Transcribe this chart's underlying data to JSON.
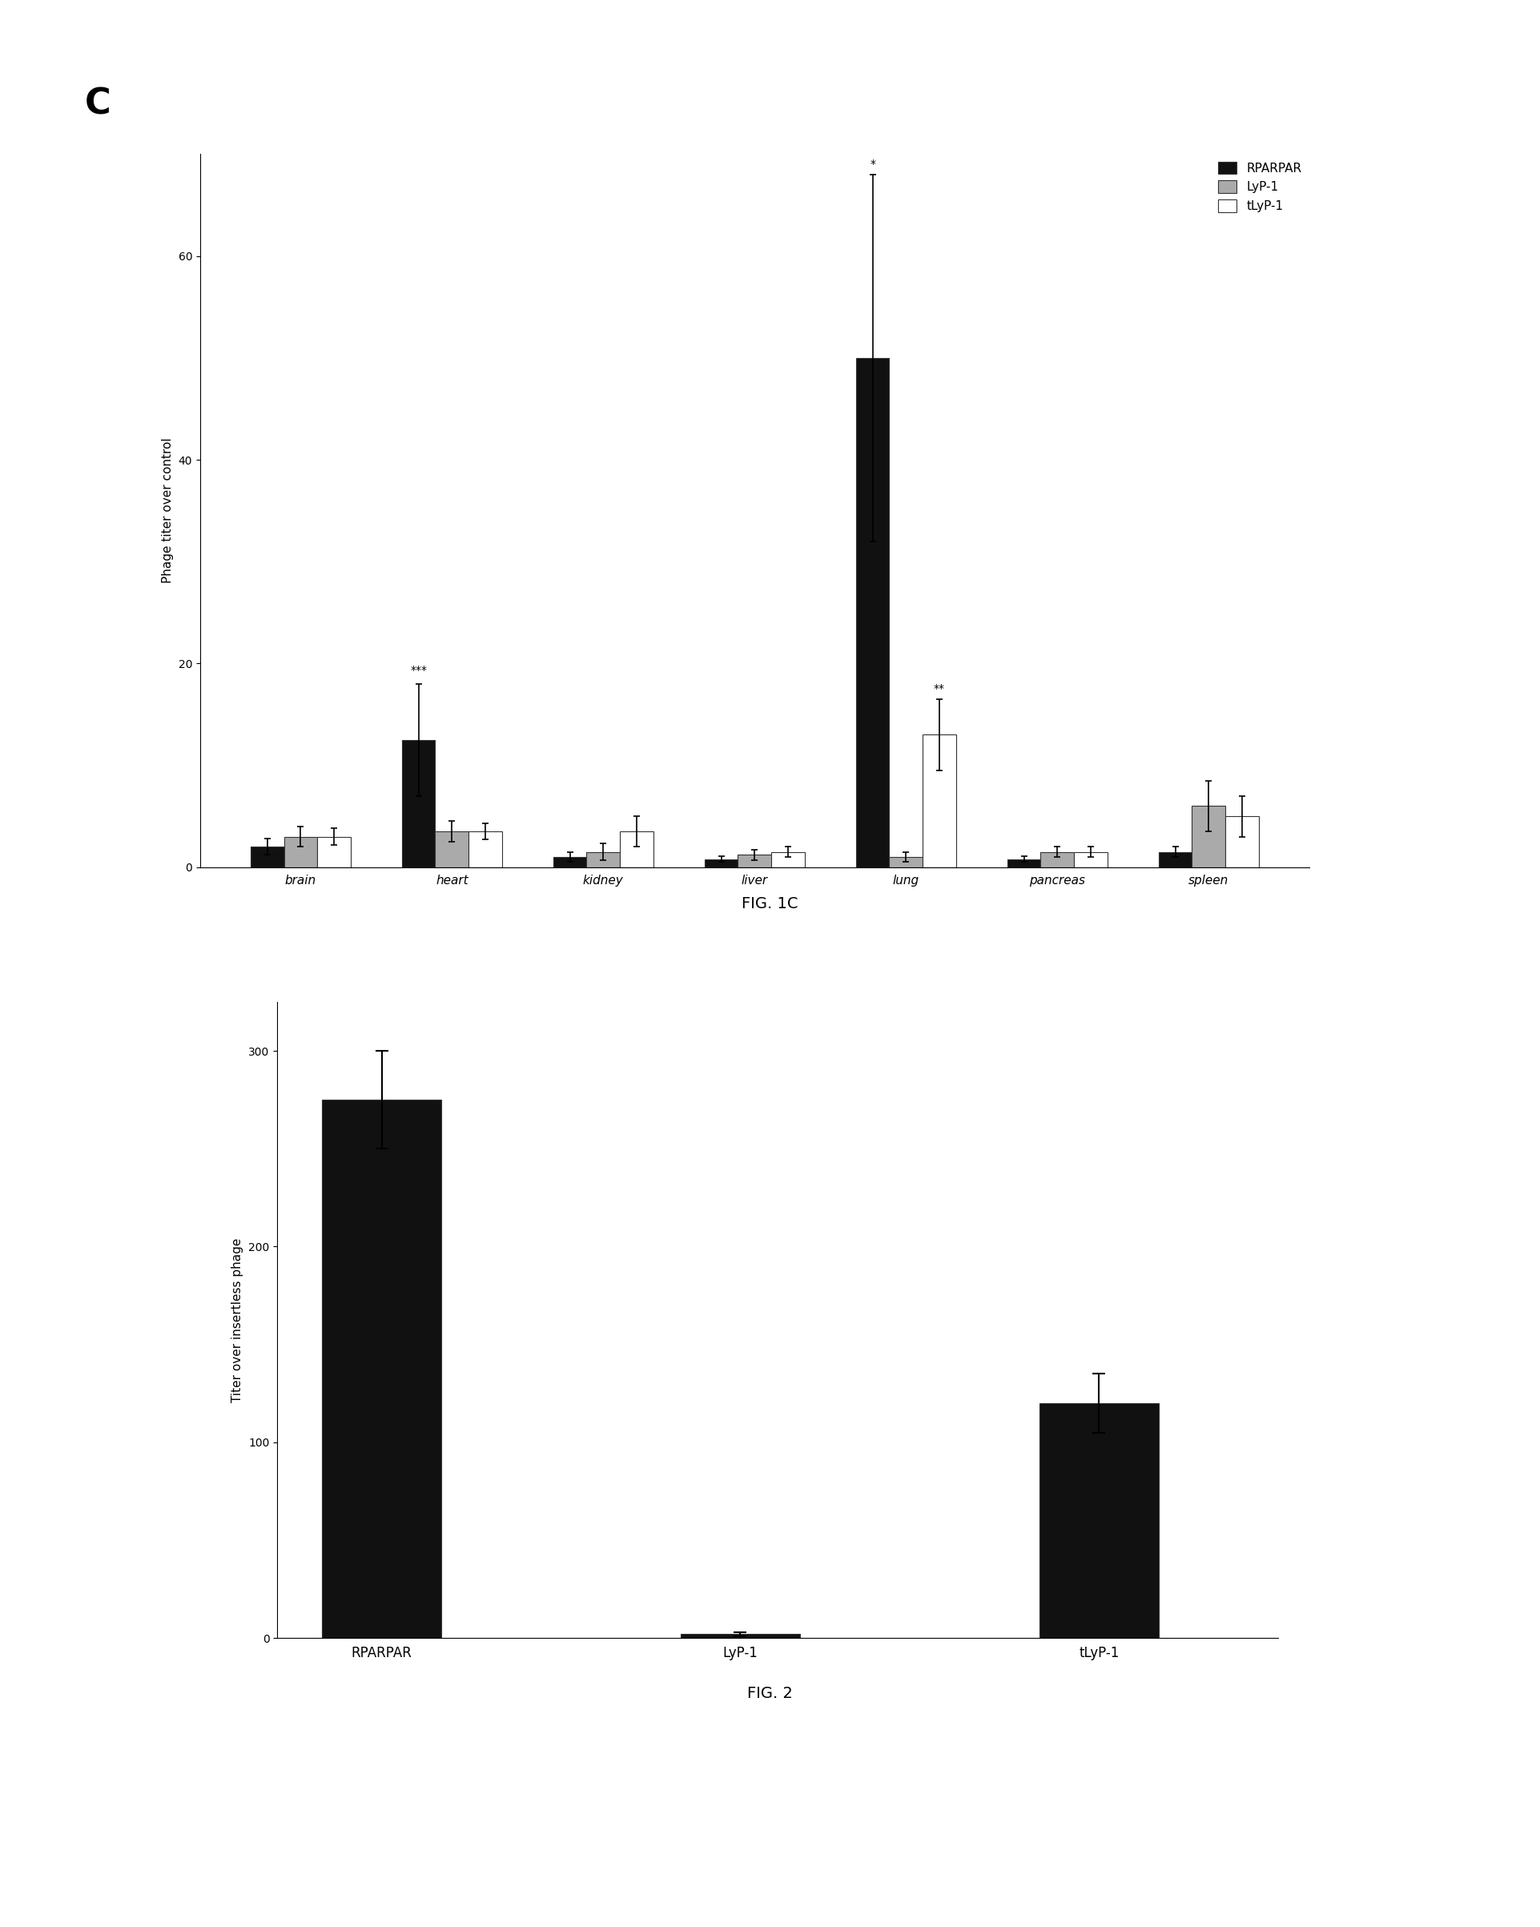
{
  "fig1c": {
    "categories": [
      "brain",
      "heart",
      "kidney",
      "liver",
      "lung",
      "pancreas",
      "spleen"
    ],
    "rparpar_values": [
      2.0,
      12.5,
      1.0,
      0.8,
      50.0,
      0.8,
      1.5
    ],
    "lyp1_values": [
      3.0,
      3.5,
      1.5,
      1.2,
      1.0,
      1.5,
      6.0
    ],
    "tlyp1_values": [
      3.0,
      3.5,
      3.5,
      1.5,
      13.0,
      1.5,
      5.0
    ],
    "rparpar_err": [
      0.8,
      5.5,
      0.5,
      0.3,
      18.0,
      0.3,
      0.5
    ],
    "lyp1_err": [
      1.0,
      1.0,
      0.8,
      0.5,
      0.5,
      0.5,
      2.5
    ],
    "tlyp1_err": [
      0.8,
      0.8,
      1.5,
      0.5,
      3.5,
      0.5,
      2.0
    ],
    "ylabel": "Phage titer over control",
    "ylim": [
      0,
      70
    ],
    "yticks": [
      0,
      20,
      40,
      60
    ],
    "panel_label": "C",
    "fig_label": "FIG. 1C",
    "sig_heart": "***",
    "sig_lung_rpar": "*",
    "sig_lung_tlyp": "**",
    "color_rparpar": "#111111",
    "color_lyp1": "#aaaaaa",
    "color_tlyp1": "#ffffff",
    "legend_labels": [
      "RPARPAR",
      "LyP-1",
      "tLyP-1"
    ]
  },
  "fig2": {
    "categories": [
      "RPARPAR",
      "LyP-1",
      "tLyP-1"
    ],
    "values": [
      275.0,
      2.0,
      120.0
    ],
    "errors": [
      25.0,
      1.0,
      15.0
    ],
    "ylabel": "Titer over insertless phage",
    "ylim": [
      0,
      325
    ],
    "yticks": [
      0,
      100,
      200,
      300
    ],
    "fig_label": "FIG. 2",
    "color": "#111111"
  },
  "background_color": "#ffffff"
}
